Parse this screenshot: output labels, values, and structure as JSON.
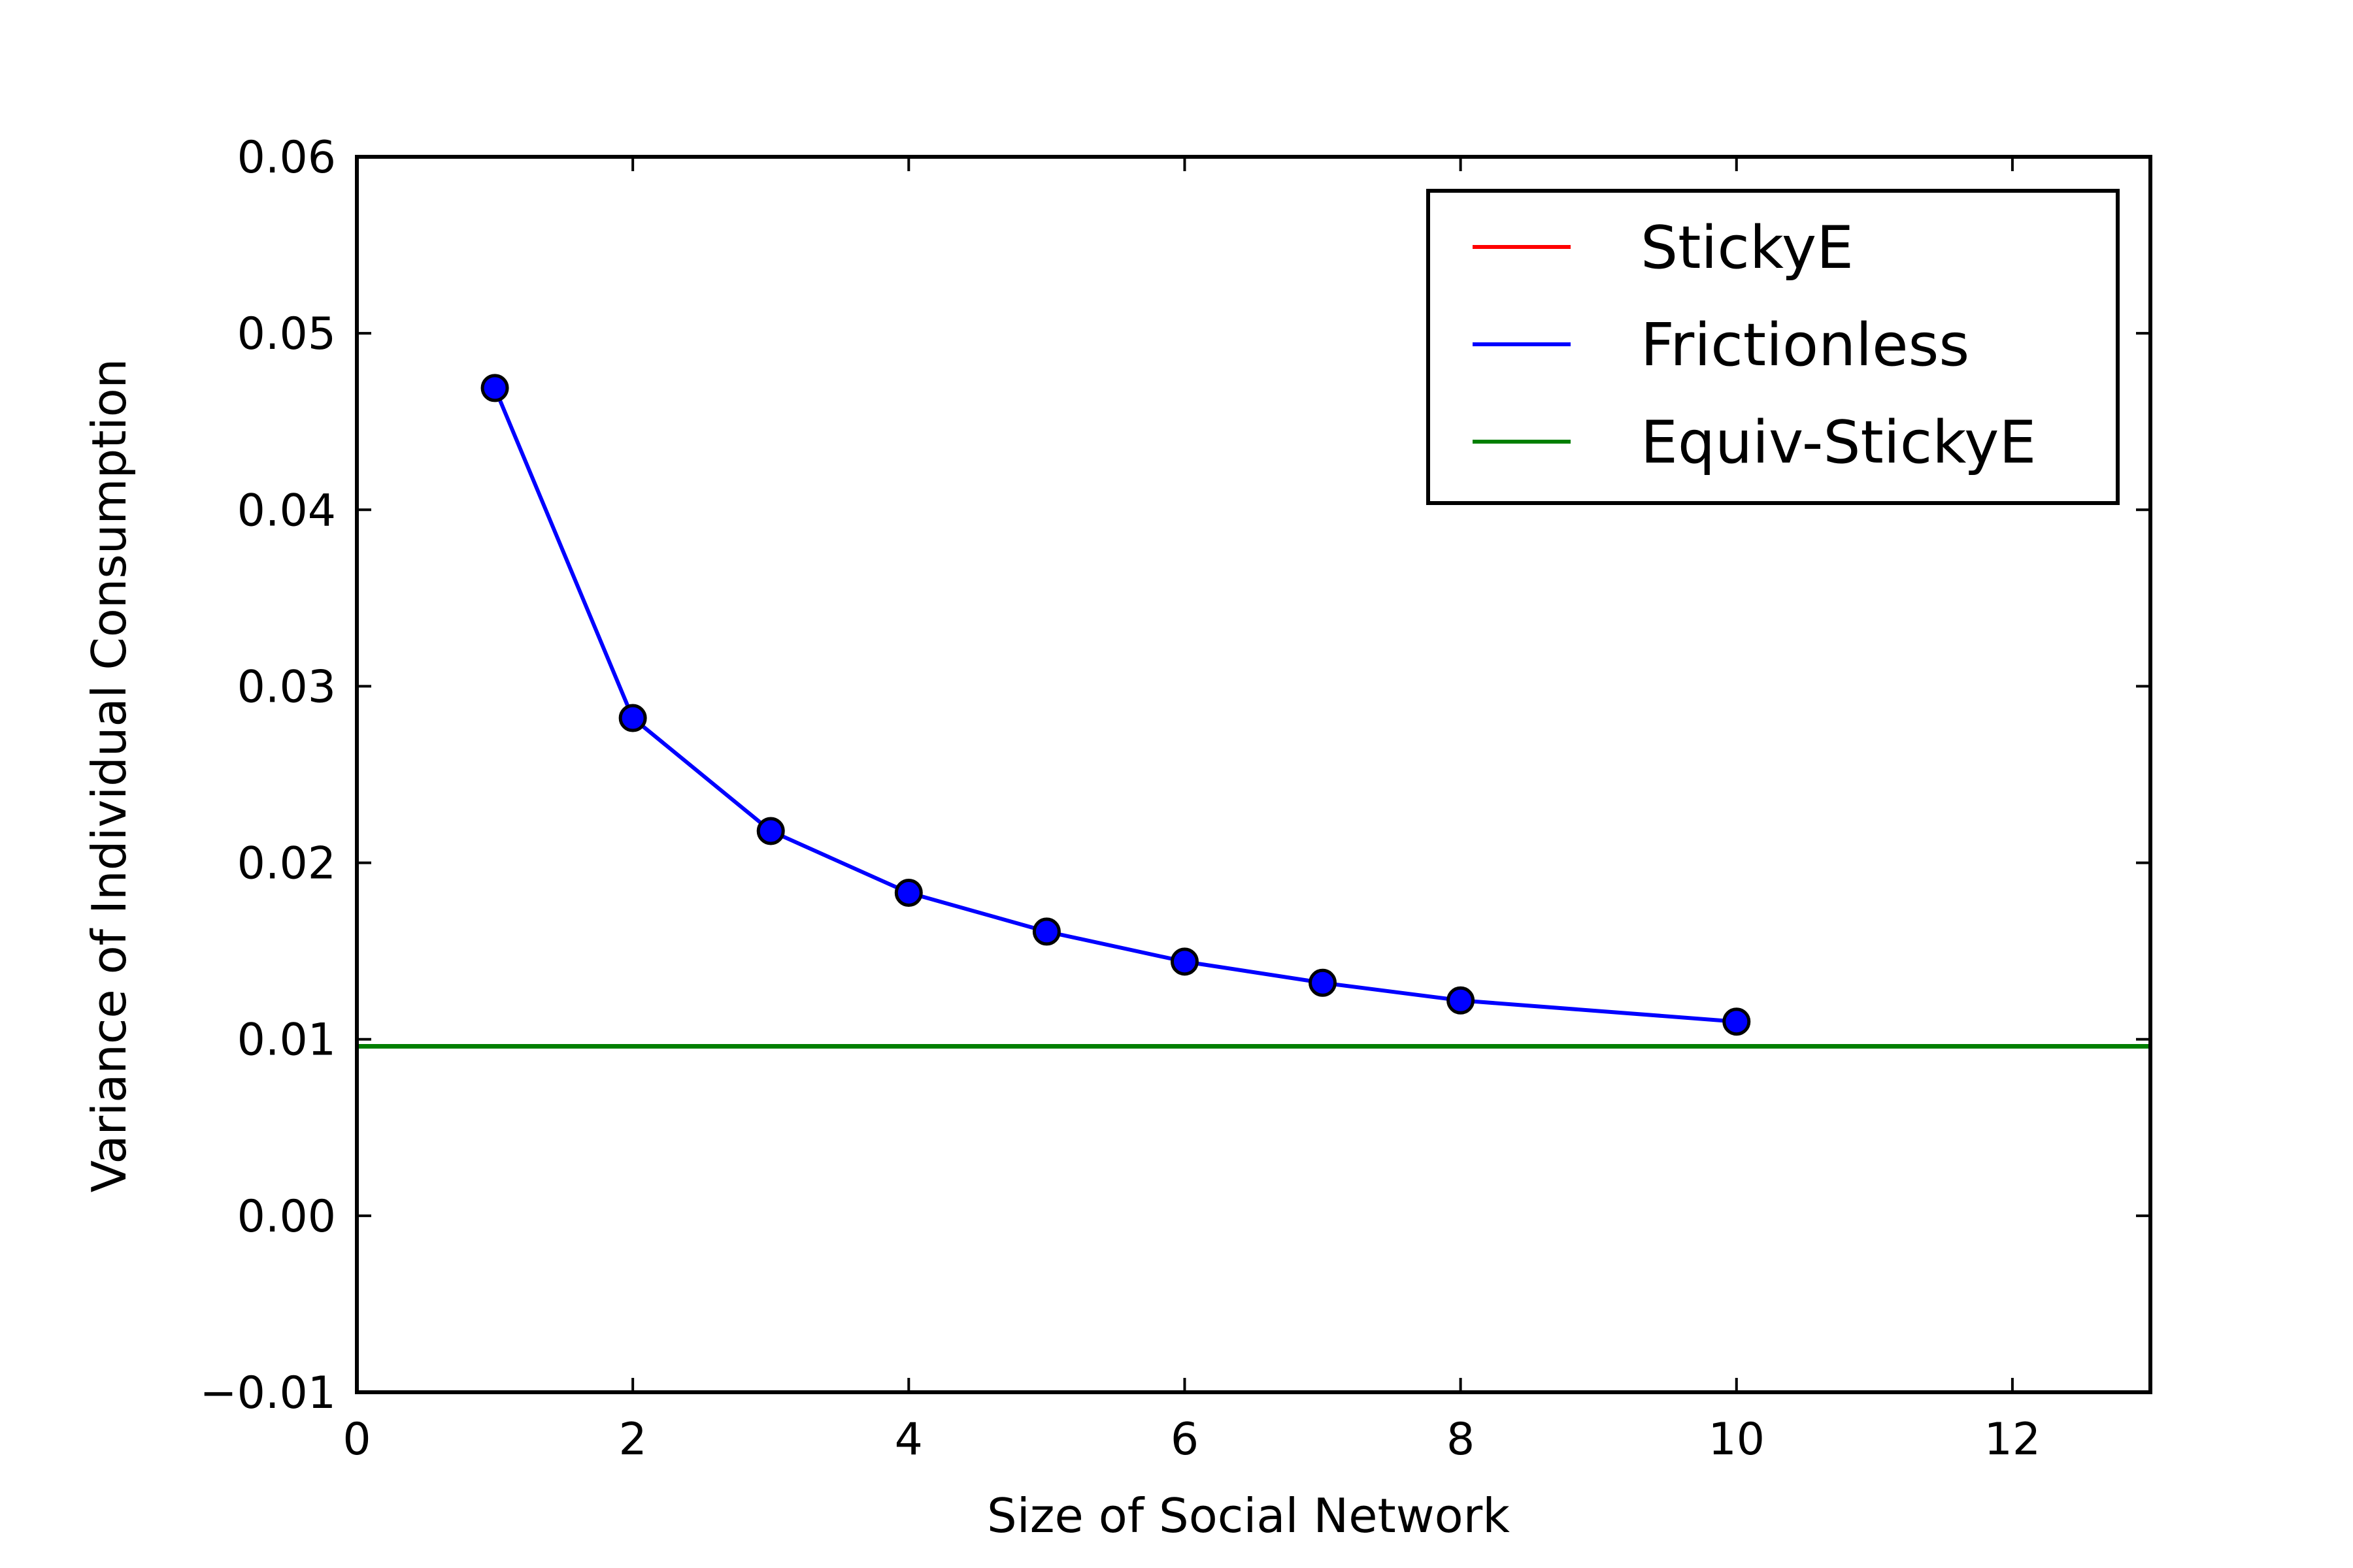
{
  "chart_data": {
    "type": "line",
    "xlabel": "Size of Social Network",
    "ylabel": "Variance of Individual Consumption",
    "xlim": [
      0,
      13
    ],
    "ylim": [
      -0.01,
      0.06
    ],
    "xticks": [
      0,
      2,
      4,
      6,
      8,
      10,
      12
    ],
    "xtick_labels": [
      "0",
      "2",
      "4",
      "6",
      "8",
      "10",
      "12"
    ],
    "yticks": [
      -0.01,
      0.0,
      0.01,
      0.02,
      0.03,
      0.04,
      0.05,
      0.06
    ],
    "ytick_labels": [
      "−0.01",
      "0.00",
      "0.01",
      "0.02",
      "0.03",
      "0.04",
      "0.05",
      "0.06"
    ],
    "grid": false,
    "legend_position": "top-right",
    "series": [
      {
        "name": "StickyE",
        "color": "#ff0000",
        "style": "line",
        "x": [],
        "y": []
      },
      {
        "name": "Frictionless",
        "color": "#0000ff",
        "style": "line-markers",
        "x": [
          1,
          2,
          3,
          4,
          5,
          6,
          7,
          8,
          10
        ],
        "y": [
          0.0469,
          0.0282,
          0.0218,
          0.0183,
          0.0161,
          0.0144,
          0.0132,
          0.0122,
          0.011
        ]
      },
      {
        "name": "Equiv-StickyE",
        "color": "#007f00",
        "style": "hline",
        "y_value": 0.0096
      }
    ]
  }
}
